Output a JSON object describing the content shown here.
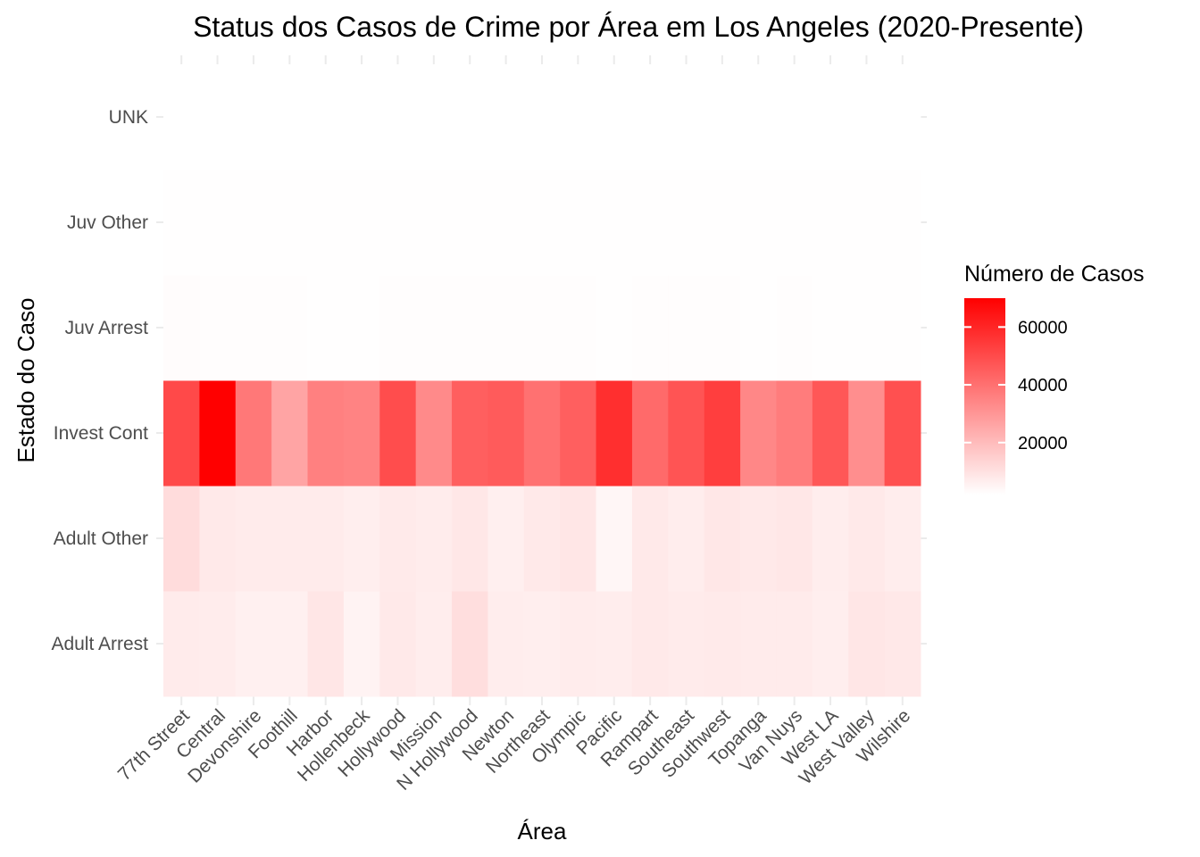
{
  "chart_data": {
    "type": "heatmap",
    "title": "Status dos Casos de Crime por Área em Los Angeles (2020-Presente)",
    "xlabel": "Área",
    "ylabel": "Estado do Caso",
    "x_categories": [
      "77th Street",
      "Central",
      "Devonshire",
      "Foothill",
      "Harbor",
      "Hollenbeck",
      "Hollywood",
      "Mission",
      "N Hollywood",
      "Newton",
      "Northeast",
      "Olympic",
      "Pacific",
      "Rampart",
      "Southeast",
      "Southwest",
      "Topanga",
      "Van Nuys",
      "West LA",
      "West Valley",
      "Wilshire"
    ],
    "y_categories": [
      "Adult Arrest",
      "Adult Other",
      "Invest Cont",
      "Juv Arrest",
      "Juv Other",
      "UNK"
    ],
    "values": [
      [
        5500,
        5200,
        4200,
        4100,
        7000,
        3200,
        6000,
        5000,
        9000,
        5000,
        4600,
        5200,
        5000,
        6000,
        5600,
        5800,
        5500,
        5500,
        4800,
        7000,
        6200
      ],
      [
        9500,
        6000,
        5500,
        5500,
        5500,
        4700,
        5800,
        5200,
        6500,
        4300,
        6000,
        7000,
        2500,
        6000,
        5000,
        6500,
        6000,
        6500,
        5000,
        6000,
        5000
      ],
      [
        50000,
        70000,
        37000,
        25000,
        35000,
        34000,
        49000,
        32000,
        44000,
        45000,
        39000,
        44000,
        57000,
        41000,
        47000,
        53000,
        33000,
        36000,
        46000,
        31000,
        48000
      ],
      [
        700,
        600,
        500,
        600,
        400,
        400,
        500,
        500,
        600,
        500,
        500,
        500,
        400,
        500,
        600,
        600,
        400,
        500,
        400,
        400,
        400
      ],
      [
        300,
        200,
        300,
        400,
        300,
        200,
        300,
        300,
        400,
        300,
        200,
        200,
        200,
        200,
        300,
        300,
        200,
        300,
        200,
        200,
        200
      ],
      [
        20,
        5,
        20,
        20,
        20,
        20,
        20,
        20,
        20,
        5,
        20,
        20,
        20,
        5,
        5,
        20,
        20,
        5,
        20,
        20,
        5
      ]
    ],
    "color_scale": {
      "low": "#ffffff",
      "high": "#ff0000",
      "min": 0,
      "max": 70000
    },
    "legend": {
      "title": "Número de Casos",
      "ticks": [
        20000,
        40000,
        60000
      ],
      "placement": "right"
    },
    "grid": true
  }
}
